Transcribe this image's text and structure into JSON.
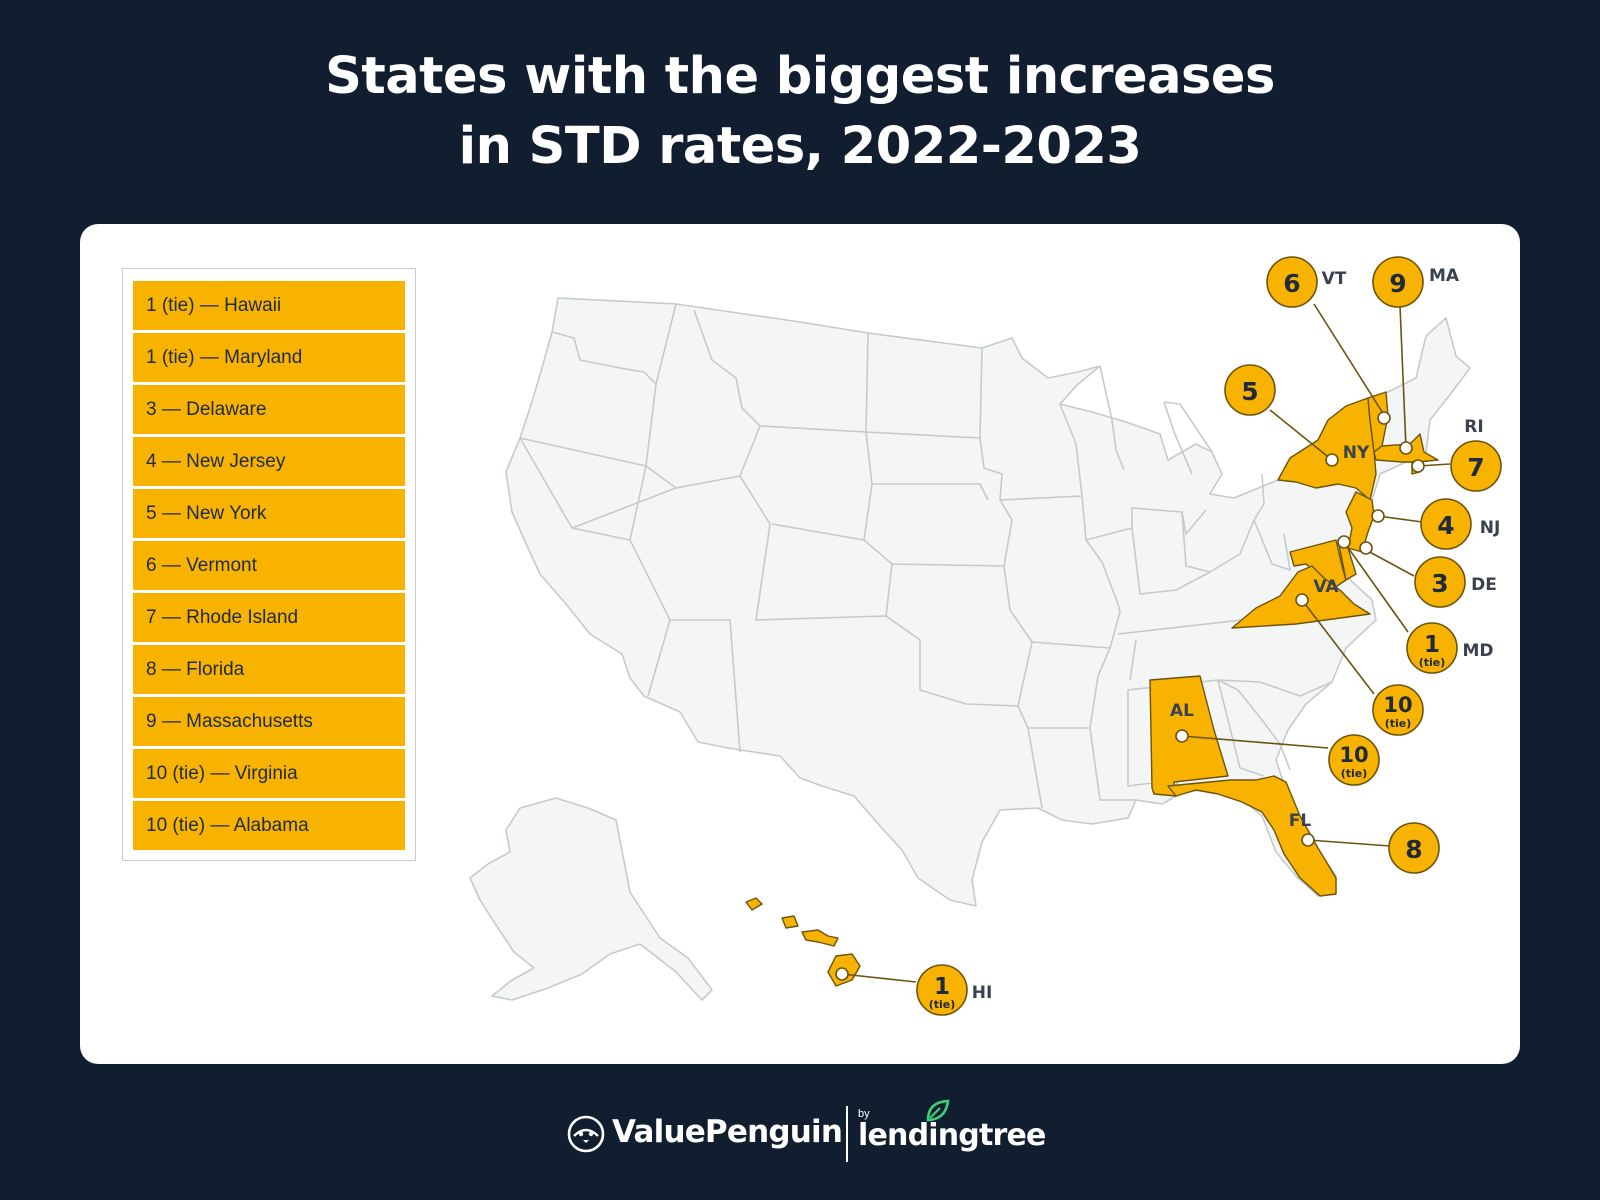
{
  "title": {
    "line1": "States with the biggest increases",
    "line2": "in STD rates, 2022-2023"
  },
  "legend": [
    "1 (tie) — Hawaii",
    "1 (tie) — Maryland",
    "3 — Delaware",
    "4 — New Jersey",
    "5 — New York",
    "6 — Vermont",
    "7 — Rhode Island",
    "8 — Florida",
    "9 — Massachusetts",
    "10 (tie) — Virginia",
    "10 (tie) — Alabama"
  ],
  "colors": {
    "background": "#111e30",
    "highlight": "#f7b300",
    "land": "#f4f5f5",
    "border": "#c6cacd",
    "leader": "#6b5410",
    "text": "#1f2a3a"
  },
  "markers": [
    {
      "state": "VT",
      "rank": "6",
      "sub": ""
    },
    {
      "state": "MA",
      "rank": "9",
      "sub": ""
    },
    {
      "state": "NY",
      "rank": "5",
      "sub": ""
    },
    {
      "state": "RI",
      "rank": "7",
      "sub": ""
    },
    {
      "state": "NJ",
      "rank": "4",
      "sub": ""
    },
    {
      "state": "DE",
      "rank": "3",
      "sub": ""
    },
    {
      "state": "MD",
      "rank": "1",
      "sub": "(tie)"
    },
    {
      "state": "VA",
      "rank": "10",
      "sub": "(tie)"
    },
    {
      "state": "AL",
      "rank": "10",
      "sub": "(tie)"
    },
    {
      "state": "FL",
      "rank": "8",
      "sub": ""
    },
    {
      "state": "HI",
      "rank": "1",
      "sub": "(tie)"
    }
  ],
  "footer": {
    "brand": "ValuePenguin",
    "by": "by",
    "partner": "lendingtree",
    "icons": [
      "penguin-logo-icon",
      "leaf-logo-icon"
    ]
  }
}
